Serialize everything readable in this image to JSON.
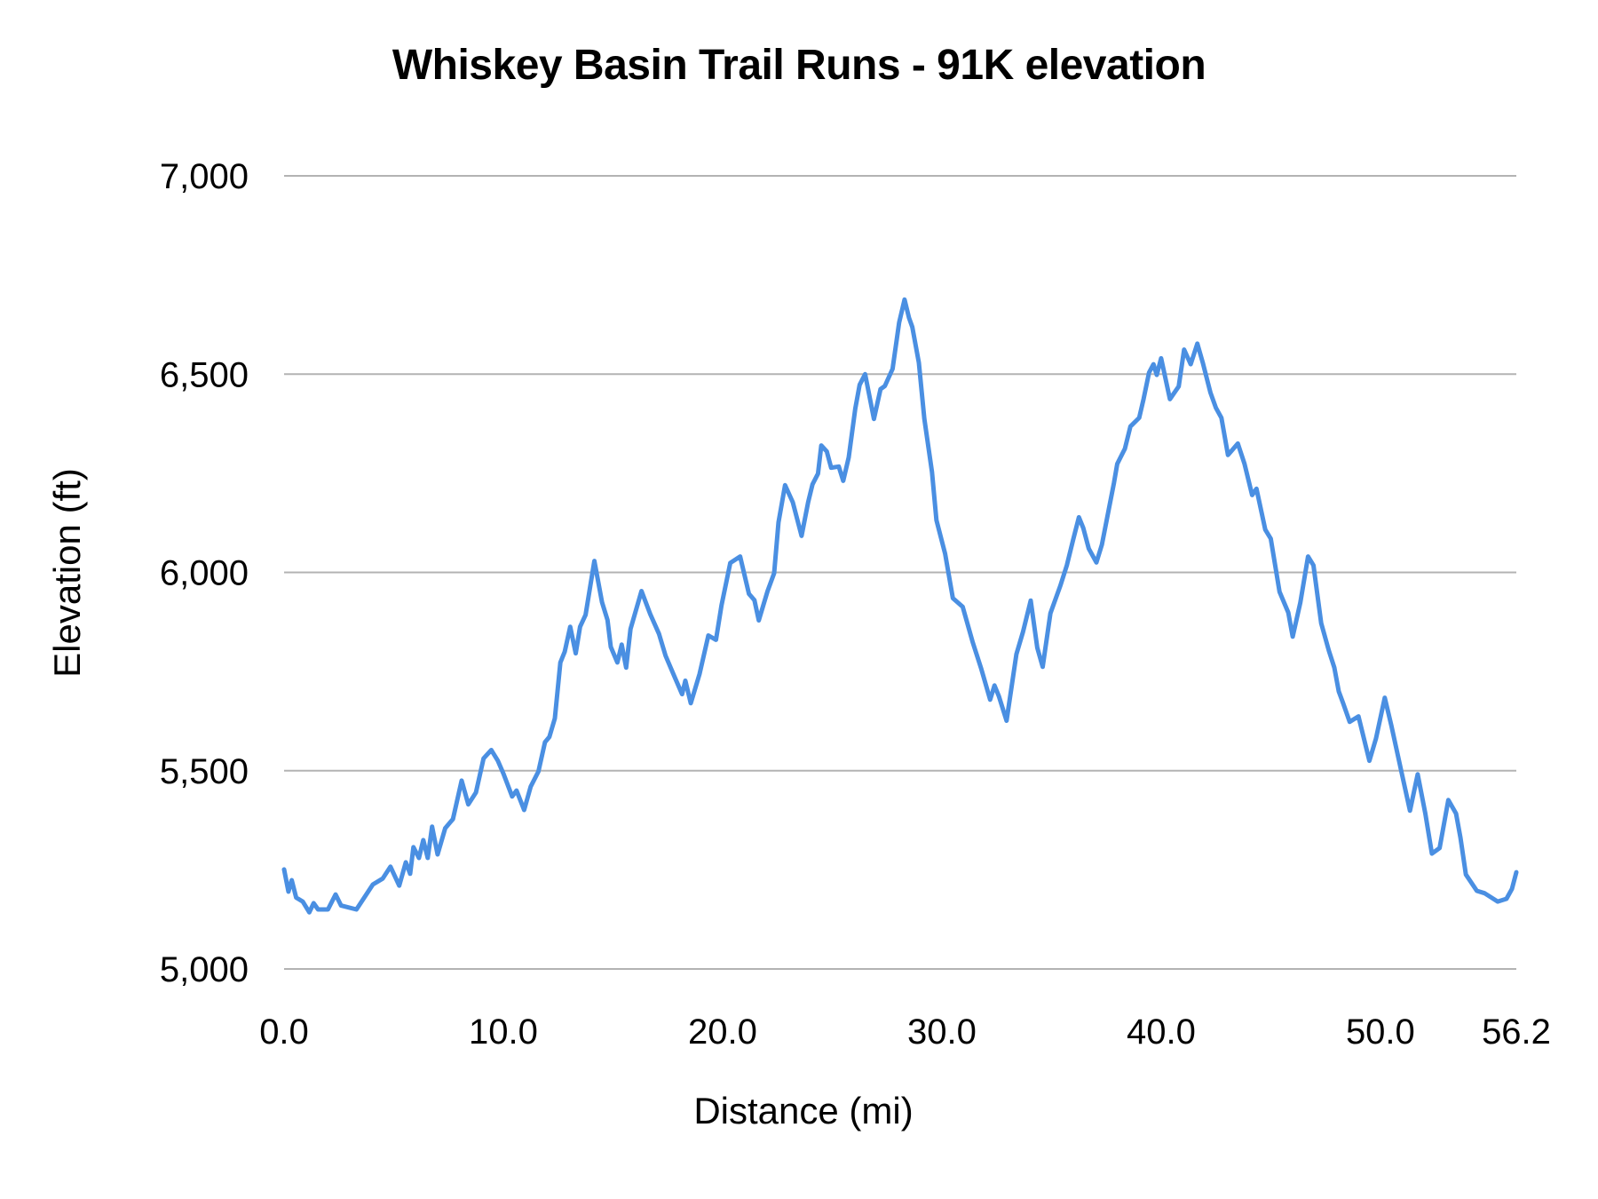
{
  "chart_data": {
    "type": "line",
    "title": "Whiskey Basin Trail Runs - 91K elevation",
    "xlabel": "Distance (mi)",
    "ylabel": "Elevation (ft)",
    "xlim": [
      0,
      56.2
    ],
    "ylim": [
      5000,
      7000
    ],
    "grid": {
      "horizontal": true,
      "vertical": false
    },
    "legend": null,
    "x_ticks": [
      0,
      10,
      20,
      30,
      40,
      50,
      56.2
    ],
    "x_tick_labels": [
      "0.0",
      "10.0",
      "20.0",
      "30.0",
      "40.0",
      "50.0",
      "56.2"
    ],
    "y_ticks": [
      5000,
      5500,
      6000,
      6500,
      7000
    ],
    "y_tick_labels": [
      "5,000",
      "5,500",
      "6,000",
      "6,500",
      "7,000"
    ],
    "series": [
      {
        "name": "Elevation",
        "color": "#4a8fe2",
        "points": [
          [
            0.0,
            5251
          ],
          [
            0.2,
            5195
          ],
          [
            0.35,
            5224
          ],
          [
            0.55,
            5180
          ],
          [
            0.85,
            5170
          ],
          [
            1.15,
            5143
          ],
          [
            1.35,
            5166
          ],
          [
            1.55,
            5150
          ],
          [
            2.0,
            5150
          ],
          [
            2.35,
            5188
          ],
          [
            2.6,
            5160
          ],
          [
            3.3,
            5150
          ],
          [
            4.05,
            5213
          ],
          [
            4.5,
            5228
          ],
          [
            4.85,
            5258
          ],
          [
            5.25,
            5210
          ],
          [
            5.55,
            5269
          ],
          [
            5.75,
            5240
          ],
          [
            5.9,
            5307
          ],
          [
            6.15,
            5280
          ],
          [
            6.35,
            5325
          ],
          [
            6.55,
            5280
          ],
          [
            6.75,
            5359
          ],
          [
            7.0,
            5289
          ],
          [
            7.35,
            5355
          ],
          [
            7.7,
            5378
          ],
          [
            8.1,
            5475
          ],
          [
            8.4,
            5415
          ],
          [
            8.75,
            5445
          ],
          [
            9.1,
            5531
          ],
          [
            9.45,
            5552
          ],
          [
            9.75,
            5525
          ],
          [
            10.0,
            5493
          ],
          [
            10.4,
            5435
          ],
          [
            10.6,
            5450
          ],
          [
            10.95,
            5401
          ],
          [
            11.25,
            5460
          ],
          [
            11.6,
            5498
          ],
          [
            11.9,
            5572
          ],
          [
            12.1,
            5585
          ],
          [
            12.35,
            5632
          ],
          [
            12.6,
            5773
          ],
          [
            12.8,
            5800
          ],
          [
            13.05,
            5863
          ],
          [
            13.3,
            5796
          ],
          [
            13.5,
            5863
          ],
          [
            13.75,
            5893
          ],
          [
            14.15,
            6029
          ],
          [
            14.5,
            5925
          ],
          [
            14.75,
            5880
          ],
          [
            14.9,
            5812
          ],
          [
            15.2,
            5773
          ],
          [
            15.4,
            5818
          ],
          [
            15.6,
            5760
          ],
          [
            15.8,
            5857
          ],
          [
            16.3,
            5953
          ],
          [
            16.7,
            5895
          ],
          [
            17.1,
            5845
          ],
          [
            17.4,
            5790
          ],
          [
            17.8,
            5738
          ],
          [
            18.15,
            5693
          ],
          [
            18.3,
            5727
          ],
          [
            18.55,
            5670
          ],
          [
            18.95,
            5744
          ],
          [
            19.35,
            5841
          ],
          [
            19.7,
            5830
          ],
          [
            19.95,
            5917
          ],
          [
            20.35,
            6024
          ],
          [
            20.8,
            6040
          ],
          [
            21.2,
            5946
          ],
          [
            21.45,
            5930
          ],
          [
            21.65,
            5879
          ],
          [
            22.05,
            5953
          ],
          [
            22.35,
            5998
          ],
          [
            22.55,
            6126
          ],
          [
            22.85,
            6220
          ],
          [
            23.2,
            6177
          ],
          [
            23.6,
            6092
          ],
          [
            23.9,
            6177
          ],
          [
            24.1,
            6222
          ],
          [
            24.35,
            6249
          ],
          [
            24.5,
            6320
          ],
          [
            24.75,
            6305
          ],
          [
            24.95,
            6264
          ],
          [
            25.3,
            6267
          ],
          [
            25.5,
            6231
          ],
          [
            25.75,
            6290
          ],
          [
            26.05,
            6413
          ],
          [
            26.25,
            6473
          ],
          [
            26.5,
            6500
          ],
          [
            26.9,
            6387
          ],
          [
            27.2,
            6462
          ],
          [
            27.4,
            6470
          ],
          [
            27.75,
            6513
          ],
          [
            28.05,
            6630
          ],
          [
            28.3,
            6688
          ],
          [
            28.5,
            6642
          ],
          [
            28.65,
            6619
          ],
          [
            28.95,
            6529
          ],
          [
            29.2,
            6387
          ],
          [
            29.55,
            6253
          ],
          [
            29.75,
            6132
          ],
          [
            30.15,
            6047
          ],
          [
            30.5,
            5935
          ],
          [
            30.95,
            5913
          ],
          [
            31.4,
            5825
          ],
          [
            31.8,
            5756
          ],
          [
            32.2,
            5679
          ],
          [
            32.4,
            5715
          ],
          [
            32.6,
            5688
          ],
          [
            32.95,
            5626
          ],
          [
            33.4,
            5794
          ],
          [
            33.7,
            5850
          ],
          [
            34.05,
            5929
          ],
          [
            34.35,
            5810
          ],
          [
            34.6,
            5762
          ],
          [
            34.95,
            5897
          ],
          [
            35.4,
            5966
          ],
          [
            35.7,
            6018
          ],
          [
            36.0,
            6085
          ],
          [
            36.25,
            6139
          ],
          [
            36.45,
            6112
          ],
          [
            36.7,
            6060
          ],
          [
            37.05,
            6025
          ],
          [
            37.3,
            6070
          ],
          [
            37.65,
            6170
          ],
          [
            37.85,
            6226
          ],
          [
            38.0,
            6274
          ],
          [
            38.35,
            6312
          ],
          [
            38.6,
            6368
          ],
          [
            39.0,
            6390
          ],
          [
            39.2,
            6437
          ],
          [
            39.45,
            6504
          ],
          [
            39.65,
            6525
          ],
          [
            39.8,
            6498
          ],
          [
            40.0,
            6540
          ],
          [
            40.4,
            6437
          ],
          [
            40.8,
            6469
          ],
          [
            41.05,
            6562
          ],
          [
            41.35,
            6525
          ],
          [
            41.65,
            6577
          ],
          [
            41.9,
            6529
          ],
          [
            42.25,
            6453
          ],
          [
            42.5,
            6415
          ],
          [
            42.75,
            6390
          ],
          [
            43.05,
            6296
          ],
          [
            43.5,
            6325
          ],
          [
            43.8,
            6274
          ],
          [
            44.15,
            6195
          ],
          [
            44.35,
            6211
          ],
          [
            44.75,
            6108
          ],
          [
            45.0,
            6085
          ],
          [
            45.4,
            5951
          ],
          [
            45.8,
            5899
          ],
          [
            46.0,
            5838
          ],
          [
            46.35,
            5924
          ],
          [
            46.7,
            6040
          ],
          [
            46.95,
            6018
          ],
          [
            47.3,
            5872
          ],
          [
            47.65,
            5803
          ],
          [
            47.9,
            5760
          ],
          [
            48.1,
            5700
          ],
          [
            48.3,
            5670
          ],
          [
            48.6,
            5623
          ],
          [
            49.0,
            5637
          ],
          [
            49.5,
            5525
          ],
          [
            49.8,
            5581
          ],
          [
            50.2,
            5684
          ],
          [
            50.5,
            5614
          ],
          [
            51.0,
            5487
          ],
          [
            51.35,
            5399
          ],
          [
            51.7,
            5491
          ],
          [
            52.05,
            5392
          ],
          [
            52.35,
            5291
          ],
          [
            52.7,
            5305
          ],
          [
            53.1,
            5426
          ],
          [
            53.45,
            5392
          ],
          [
            53.65,
            5332
          ],
          [
            53.9,
            5238
          ],
          [
            54.4,
            5197
          ],
          [
            54.75,
            5191
          ],
          [
            55.35,
            5170
          ],
          [
            55.75,
            5177
          ],
          [
            56.0,
            5202
          ],
          [
            56.2,
            5244
          ]
        ]
      }
    ]
  },
  "style": {
    "line_color": "#4a8fe2",
    "grid_color": "#b3b3b3",
    "text_color": "#000000",
    "background": "#ffffff"
  }
}
